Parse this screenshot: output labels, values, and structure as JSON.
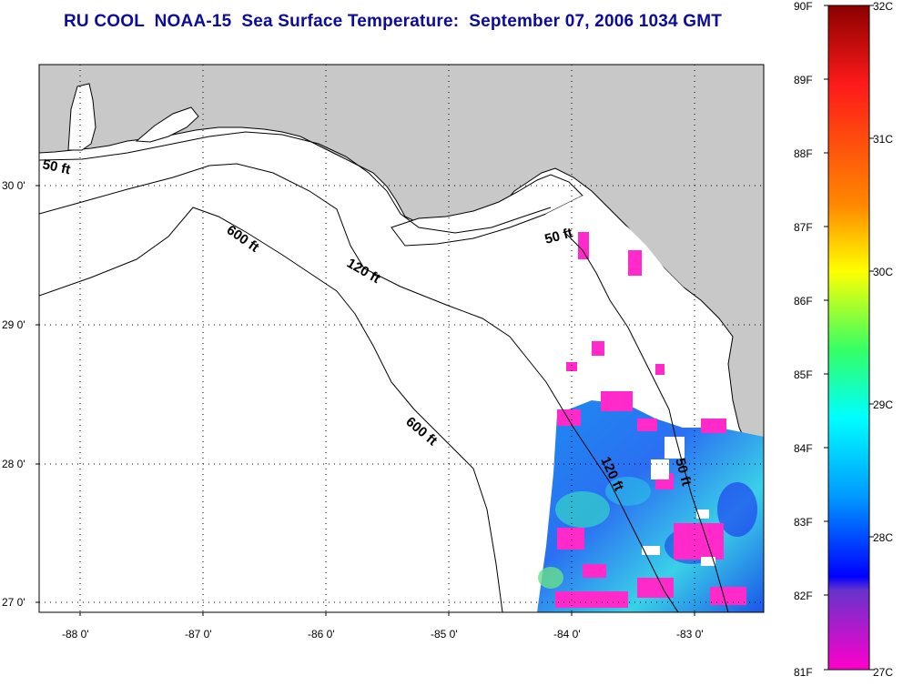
{
  "title": "RU COOL  NOAA-15  Sea Surface Temperature:  September 07, 2006 1034 GMT",
  "map": {
    "lat_labels": [
      "30 0'",
      "29 0'",
      "28 0'",
      "27 0'"
    ],
    "lon_labels": [
      "-88 0'",
      "-87 0'",
      "-86 0'",
      "-85 0'",
      "-84 0'",
      "-83 0'"
    ],
    "contour_labels": [
      "50 ft",
      "600 ft",
      "120 ft",
      "50 ft",
      "600 ft",
      "120 ft",
      "50 ft"
    ],
    "colors": {
      "land": "#c8c8c8",
      "water": "#ffffff",
      "cloud_mask": "#ff2ac9"
    }
  },
  "colorbar": {
    "fahrenheit": [
      "90F",
      "89F",
      "88F",
      "87F",
      "86F",
      "85F",
      "84F",
      "83F",
      "82F",
      "81F"
    ],
    "celsius": [
      "32C",
      "31C",
      "30C",
      "29C",
      "28C",
      "27C"
    ]
  }
}
